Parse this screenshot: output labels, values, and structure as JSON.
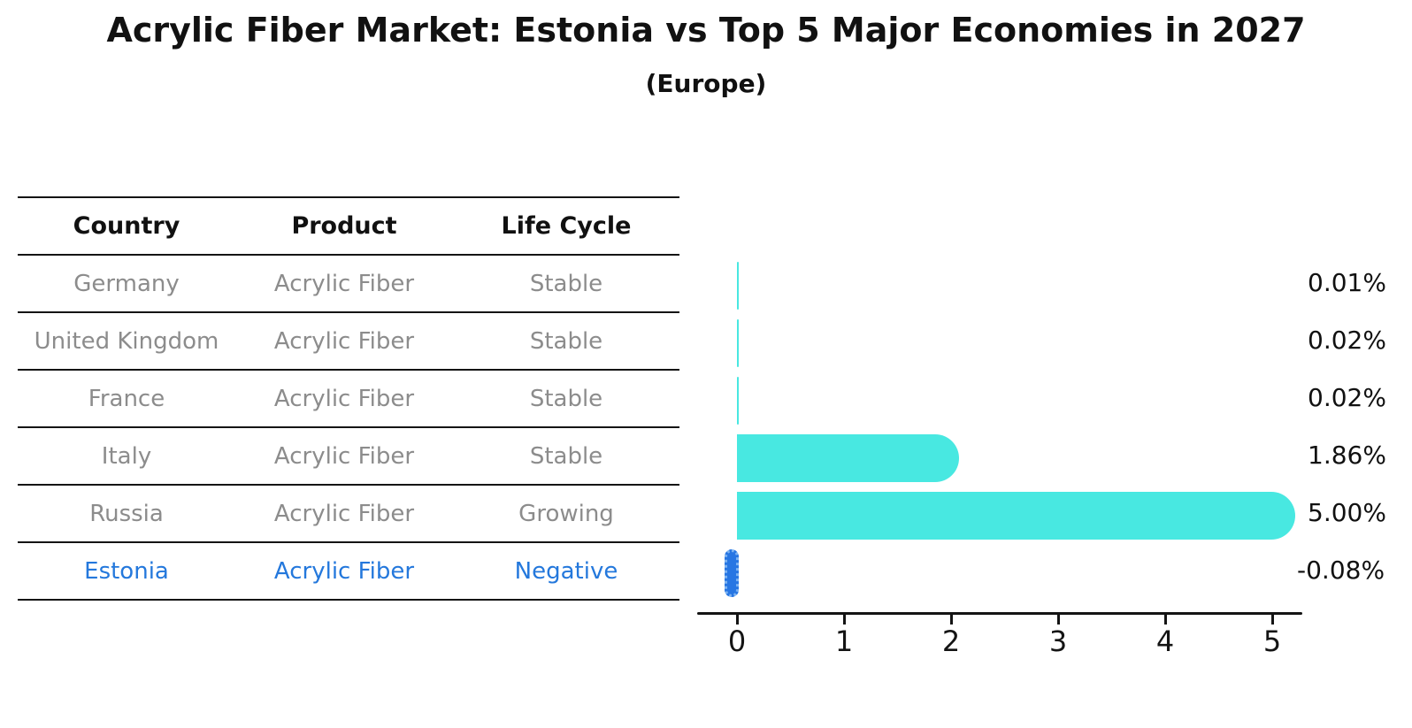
{
  "title": "Acrylic Fiber Market: Estonia vs Top 5 Major Economies in 2027",
  "subtitle": "(Europe)",
  "table": {
    "headers": [
      "Country",
      "Product",
      "Life Cycle"
    ],
    "rows": [
      {
        "country": "Germany",
        "product": "Acrylic Fiber",
        "life_cycle": "Stable",
        "highlight": false
      },
      {
        "country": "United Kingdom",
        "product": "Acrylic Fiber",
        "life_cycle": "Stable",
        "highlight": false
      },
      {
        "country": "France",
        "product": "Acrylic Fiber",
        "life_cycle": "Stable",
        "highlight": false
      },
      {
        "country": "Italy",
        "product": "Acrylic Fiber",
        "life_cycle": "Stable",
        "highlight": false
      },
      {
        "country": "Russia",
        "product": "Acrylic Fiber",
        "life_cycle": "Growing",
        "highlight": false
      },
      {
        "country": "Estonia",
        "product": "Acrylic Fiber",
        "life_cycle": "Negative",
        "highlight": true
      }
    ]
  },
  "chart_data": {
    "type": "bar",
    "orientation": "horizontal",
    "title": "Acrylic Fiber Market: Estonia vs Top 5 Major Economies in 2027 (Europe)",
    "categories": [
      "Germany",
      "United Kingdom",
      "France",
      "Italy",
      "Russia",
      "Estonia"
    ],
    "values": [
      0.01,
      0.02,
      0.02,
      1.86,
      5.0,
      -0.08
    ],
    "value_labels": [
      "0.01%",
      "0.02%",
      "0.02%",
      "1.86%",
      "5.00%",
      "-0.08%"
    ],
    "xlim": [
      0,
      5
    ],
    "xticks": [
      "0",
      "1",
      "2",
      "3",
      "4",
      "5"
    ],
    "grid": false,
    "legend": false,
    "bar_color": "#48e8e1",
    "highlight_color": "#2776e3",
    "highlight_index": 5
  }
}
